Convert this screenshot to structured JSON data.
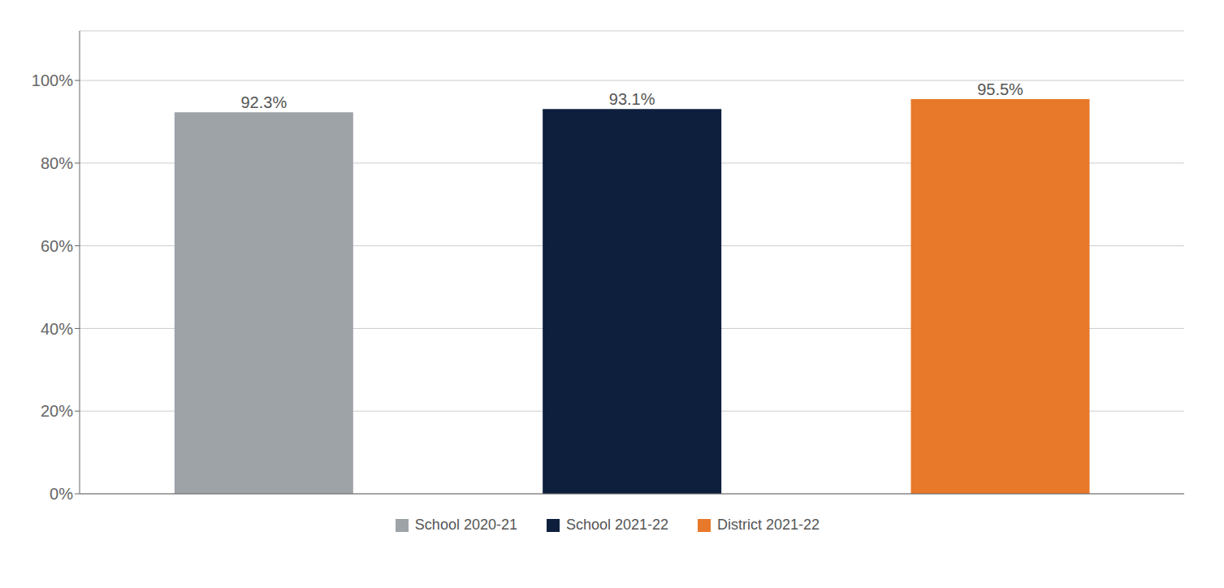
{
  "chart_data": {
    "type": "bar",
    "categories": [
      "School 2020-21",
      "School 2021-22",
      "District 2021-22"
    ],
    "values": [
      0.923,
      0.931,
      0.955
    ],
    "value_labels": [
      "92.3%",
      "93.1%",
      "95.5%"
    ],
    "colors": [
      "#9EA3A8",
      "#0D1F3C",
      "#E8782A"
    ],
    "ylim": [
      0,
      1.12
    ],
    "yticks": [
      {
        "value": 0,
        "label": "0%"
      },
      {
        "value": 0.2,
        "label": "20%"
      },
      {
        "value": 0.4,
        "label": "40%"
      },
      {
        "value": 0.6,
        "label": "60%"
      },
      {
        "value": 0.8,
        "label": "80%"
      },
      {
        "value": 1.0,
        "label": "100%"
      }
    ],
    "grid": true,
    "data_labels": true,
    "legend": "bottom",
    "tick_labels": "y"
  }
}
